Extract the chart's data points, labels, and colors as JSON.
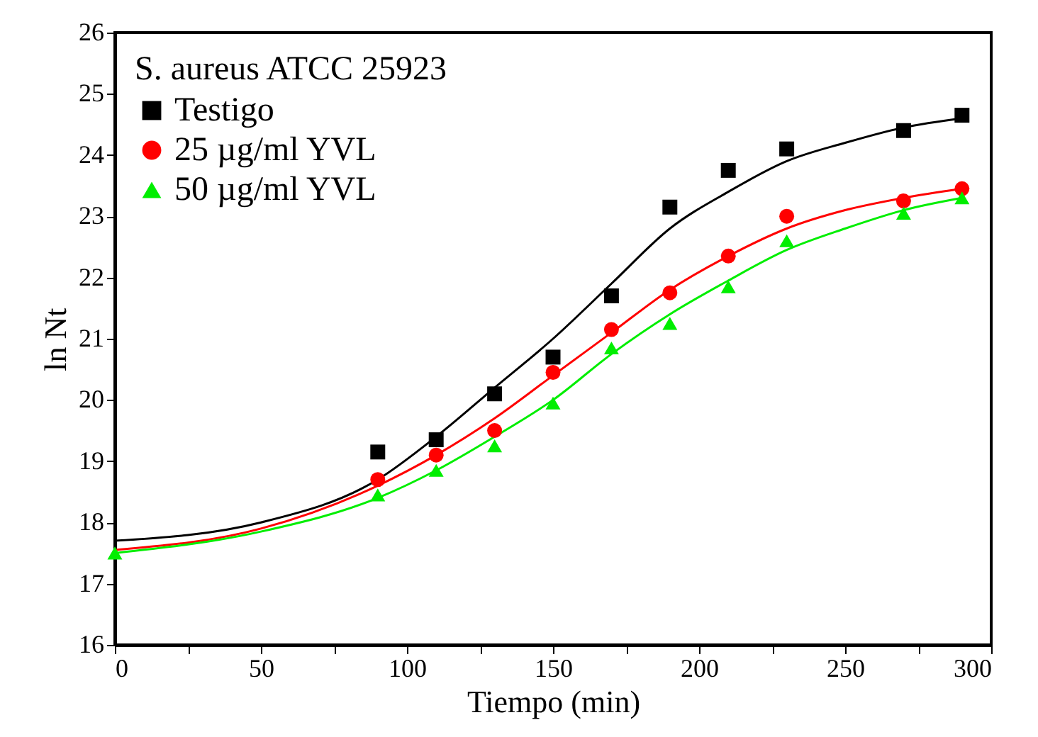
{
  "chart_data": {
    "type": "scatter",
    "legend_title": "S. aureus ATCC 25923",
    "xlabel": "Tiempo (min)",
    "ylabel": "ln Nt",
    "xlim": [
      0,
      300
    ],
    "ylim": [
      16,
      26
    ],
    "xticks": [
      0,
      {
        "value": 25,
        "label": null
      },
      50,
      {
        "value": 75,
        "label": null
      },
      100,
      {
        "value": 125,
        "label": null
      },
      150,
      {
        "value": 175,
        "label": null
      },
      200,
      {
        "value": 225,
        "label": null
      },
      250,
      {
        "value": 275,
        "label": null
      },
      300
    ],
    "yticks": [
      16,
      17,
      18,
      19,
      20,
      21,
      22,
      23,
      24,
      25,
      26
    ],
    "grid": false,
    "legend": "top left",
    "series": [
      {
        "name": "Testigo",
        "type": "scatter",
        "marker": "square",
        "color": "#000000",
        "x": [
          90,
          110,
          130,
          150,
          170,
          190,
          210,
          230,
          270,
          290
        ],
        "values": [
          19.15,
          19.35,
          20.1,
          20.7,
          21.7,
          23.15,
          23.75,
          24.1,
          24.4,
          24.65
        ]
      },
      {
        "name": "25 µg/ml YVL",
        "type": "scatter",
        "marker": "circle",
        "color": "#ff0000",
        "x": [
          90,
          110,
          130,
          150,
          170,
          190,
          210,
          230,
          270,
          290
        ],
        "values": [
          18.7,
          19.1,
          19.5,
          20.45,
          21.15,
          21.75,
          22.35,
          23.0,
          23.25,
          23.45
        ]
      },
      {
        "name": "50 µg/ml YVL",
        "type": "scatter",
        "marker": "triangle",
        "color": "#00ee00",
        "x": [
          0,
          90,
          110,
          130,
          150,
          170,
          190,
          210,
          230,
          270,
          290
        ],
        "values": [
          17.5,
          18.45,
          18.85,
          19.25,
          19.95,
          20.85,
          21.25,
          21.85,
          22.6,
          23.05,
          23.3
        ]
      },
      {
        "type": "line",
        "marker": "none",
        "color": "#000000",
        "x": [
          0,
          50,
          90,
          110,
          130,
          150,
          170,
          190,
          210,
          230,
          250,
          270,
          290
        ],
        "values": [
          17.7,
          18.0,
          18.7,
          19.4,
          20.2,
          21.0,
          21.9,
          22.8,
          23.4,
          23.9,
          24.2,
          24.45,
          24.6
        ]
      },
      {
        "type": "line",
        "marker": "none",
        "color": "#ff0000",
        "x": [
          0,
          50,
          90,
          110,
          130,
          150,
          170,
          190,
          210,
          230,
          250,
          270,
          290
        ],
        "values": [
          17.55,
          17.9,
          18.6,
          19.1,
          19.7,
          20.4,
          21.1,
          21.8,
          22.35,
          22.8,
          23.1,
          23.3,
          23.45
        ]
      },
      {
        "type": "line",
        "marker": "none",
        "color": "#00ee00",
        "x": [
          0,
          50,
          90,
          110,
          130,
          150,
          170,
          190,
          210,
          230,
          250,
          270,
          290
        ],
        "values": [
          17.5,
          17.85,
          18.4,
          18.85,
          19.4,
          20.0,
          20.75,
          21.4,
          21.95,
          22.45,
          22.8,
          23.1,
          23.3
        ]
      }
    ]
  }
}
